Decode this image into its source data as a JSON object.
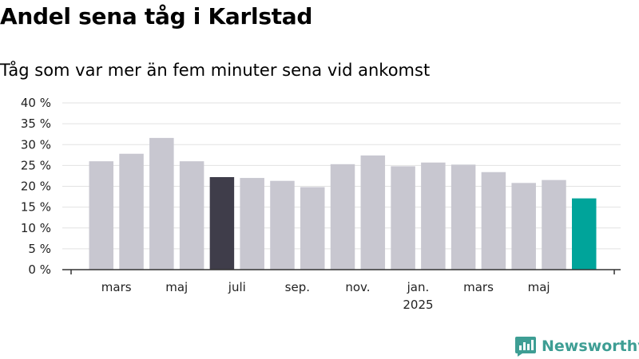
{
  "title": "Andel sena tåg i Karlstad",
  "subtitle": "Tåg som var mer än fem minuter sena vid ankomst",
  "brand": {
    "name": "Newsworthy",
    "color": "#3e9e94",
    "icon": "newsworthy-logo-icon"
  },
  "colors": {
    "bar": "#c8c7d0",
    "highlight": "#3f3d4a",
    "latest": "#00a49a",
    "grid": "#e2e2e2",
    "axis": "#333333"
  },
  "chart_data": {
    "type": "bar",
    "title": "Andel sena tåg i Karlstad",
    "subtitle": "Tåg som var mer än fem minuter sena vid ankomst",
    "xlabel": "",
    "ylabel": "",
    "ylim": [
      0,
      40
    ],
    "yticks": [
      0,
      5,
      10,
      15,
      20,
      25,
      30,
      35,
      40
    ],
    "ytick_labels": [
      "0 %",
      "5 %",
      "10 %",
      "15 %",
      "20 %",
      "25 %",
      "30 %",
      "35 %",
      "40 %"
    ],
    "xtick_labels": [
      {
        "at": 2,
        "label": "mars"
      },
      {
        "at": 4,
        "label": "maj"
      },
      {
        "at": 6,
        "label": "juli"
      },
      {
        "at": 8,
        "label": "sep."
      },
      {
        "at": 10,
        "label": "nov."
      },
      {
        "at": 12,
        "label": "jan.",
        "sublabel": "2025"
      },
      {
        "at": 14,
        "label": "mars"
      },
      {
        "at": 16,
        "label": "maj"
      }
    ],
    "categories": [
      "2024-01",
      "2024-02",
      "2024-03",
      "2024-04",
      "2024-05",
      "2024-06",
      "2024-07",
      "2024-08",
      "2024-09",
      "2024-10",
      "2024-11",
      "2024-12",
      "2025-01",
      "2025-02",
      "2025-03",
      "2025-04",
      "2025-05",
      "2025-06"
    ],
    "values": [
      null,
      26.0,
      27.8,
      31.6,
      26.0,
      22.2,
      22.0,
      21.3,
      19.8,
      25.3,
      27.4,
      24.8,
      25.7,
      25.2,
      23.4,
      20.8,
      21.5,
      17.1
    ],
    "highlight_index": 5,
    "latest_index": 17,
    "grid": true,
    "legend": "none"
  }
}
